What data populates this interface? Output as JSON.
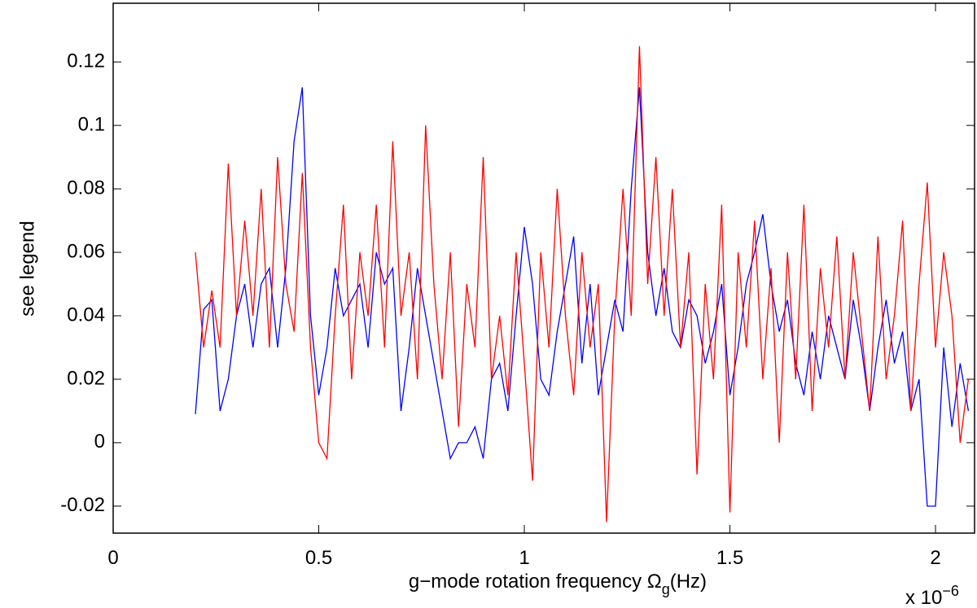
{
  "chart_data": {
    "type": "line",
    "xlabel_parts": [
      "g−mode rotation frequency  Ω",
      "g",
      "(Hz)"
    ],
    "ylabel": "see legend",
    "x_exponent": [
      "x 10",
      "−6"
    ],
    "xlim": [
      0,
      2.095e-06
    ],
    "ylim": [
      -0.0285,
      0.1385
    ],
    "xticks": [
      0,
      {
        "value": 5e-07,
        "label": "0.5"
      },
      {
        "value": 1e-06,
        "label": "1"
      },
      {
        "value": 1.5e-06,
        "label": "1.5"
      },
      {
        "value": 2e-06,
        "label": "2"
      }
    ],
    "yticks": [
      -0.02,
      0,
      0.02,
      0.04,
      0.06,
      0.08,
      0.1,
      0.12
    ],
    "x": [
      2e-07,
      2.2e-07,
      2.4e-07,
      2.6e-07,
      2.8e-07,
      3e-07,
      3.2e-07,
      3.4e-07,
      3.6e-07,
      3.8e-07,
      4e-07,
      4.2e-07,
      4.4e-07,
      4.6e-07,
      4.8e-07,
      5e-07,
      5.2e-07,
      5.4e-07,
      5.6e-07,
      5.8e-07,
      6e-07,
      6.2e-07,
      6.4e-07,
      6.6e-07,
      6.8e-07,
      7e-07,
      7.2e-07,
      7.4e-07,
      7.6e-07,
      7.8e-07,
      8e-07,
      8.2e-07,
      8.4e-07,
      8.6e-07,
      8.8e-07,
      9e-07,
      9.2e-07,
      9.4e-07,
      9.6e-07,
      9.8e-07,
      1e-06,
      1.02e-06,
      1.04e-06,
      1.06e-06,
      1.08e-06,
      1.1e-06,
      1.12e-06,
      1.14e-06,
      1.16e-06,
      1.18e-06,
      1.2e-06,
      1.22e-06,
      1.24e-06,
      1.26e-06,
      1.28e-06,
      1.3e-06,
      1.32e-06,
      1.34e-06,
      1.36e-06,
      1.38e-06,
      1.4e-06,
      1.42e-06,
      1.44e-06,
      1.46e-06,
      1.48e-06,
      1.5e-06,
      1.52e-06,
      1.54e-06,
      1.56e-06,
      1.58e-06,
      1.6e-06,
      1.62e-06,
      1.64e-06,
      1.66e-06,
      1.68e-06,
      1.7e-06,
      1.72e-06,
      1.74e-06,
      1.76e-06,
      1.78e-06,
      1.8e-06,
      1.82e-06,
      1.84e-06,
      1.86e-06,
      1.88e-06,
      1.9e-06,
      1.92e-06,
      1.94e-06,
      1.96e-06,
      1.98e-06,
      2e-06,
      2.02e-06,
      2.04e-06,
      2.06e-06,
      2.08e-06
    ],
    "series": [
      {
        "color": "#0000ff",
        "values": [
          0.009,
          0.042,
          0.045,
          0.01,
          0.02,
          0.04,
          0.05,
          0.03,
          0.05,
          0.055,
          0.03,
          0.055,
          0.095,
          0.112,
          0.04,
          0.015,
          0.03,
          0.055,
          0.04,
          0.045,
          0.05,
          0.03,
          0.06,
          0.05,
          0.055,
          0.01,
          0.03,
          0.055,
          0.04,
          0.025,
          0.01,
          -0.005,
          0.0,
          0.0,
          0.005,
          -0.005,
          0.02,
          0.025,
          0.01,
          0.04,
          0.068,
          0.05,
          0.02,
          0.015,
          0.035,
          0.05,
          0.065,
          0.025,
          0.05,
          0.015,
          0.03,
          0.045,
          0.035,
          0.08,
          0.112,
          0.06,
          0.04,
          0.055,
          0.035,
          0.03,
          0.045,
          0.04,
          0.025,
          0.035,
          0.05,
          0.015,
          0.03,
          0.05,
          0.06,
          0.072,
          0.05,
          0.035,
          0.045,
          0.025,
          0.015,
          0.035,
          0.02,
          0.04,
          0.03,
          0.02,
          0.045,
          0.03,
          0.01,
          0.03,
          0.045,
          0.025,
          0.035,
          0.01,
          0.02,
          -0.02,
          -0.02,
          0.03,
          0.005,
          0.025,
          0.01
        ]
      },
      {
        "color": "#ff0000",
        "values": [
          0.06,
          0.03,
          0.048,
          0.03,
          0.088,
          0.04,
          0.07,
          0.04,
          0.08,
          0.03,
          0.09,
          0.05,
          0.035,
          0.085,
          0.03,
          0.0,
          -0.005,
          0.04,
          0.075,
          0.02,
          0.06,
          0.04,
          0.075,
          0.03,
          0.095,
          0.04,
          0.06,
          0.02,
          0.1,
          0.05,
          0.02,
          0.06,
          0.005,
          0.05,
          0.03,
          0.09,
          0.02,
          0.04,
          0.015,
          0.06,
          0.025,
          -0.012,
          0.06,
          0.03,
          0.08,
          0.04,
          0.015,
          0.06,
          0.03,
          0.05,
          -0.025,
          0.04,
          0.08,
          0.04,
          0.125,
          0.05,
          0.09,
          0.04,
          0.08,
          0.03,
          0.06,
          -0.01,
          0.05,
          0.02,
          0.075,
          -0.022,
          0.06,
          0.03,
          0.07,
          0.02,
          0.055,
          0.0,
          0.06,
          0.02,
          0.075,
          0.01,
          0.055,
          0.03,
          0.065,
          0.02,
          0.06,
          0.035,
          0.01,
          0.065,
          0.02,
          0.04,
          0.07,
          0.01,
          0.05,
          0.082,
          0.03,
          0.06,
          0.04,
          0.0,
          0.02
        ]
      }
    ]
  }
}
